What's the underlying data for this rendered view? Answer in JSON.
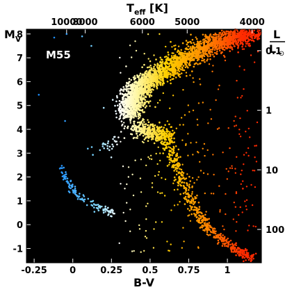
{
  "chart_data": {
    "type": "scatter",
    "annotation": "M55",
    "xlabel": "B-V",
    "ylabel_main": "M",
    "ylabel_sub": "V",
    "top_label_main": "T",
    "top_label_sub": "eff",
    "top_label_units": " [K]",
    "right_label_num": "L",
    "right_label_den": "L",
    "right_label_den_symbol": "⊙",
    "xlim": [
      -0.3,
      1.22
    ],
    "ylim": [
      8.2,
      -1.6
    ],
    "x_ticks": [
      {
        "value": -0.25,
        "label": "-0.25"
      },
      {
        "value": 0,
        "label": "0"
      },
      {
        "value": 0.25,
        "label": "0.25"
      },
      {
        "value": 0.5,
        "label": "0.5"
      },
      {
        "value": 0.75,
        "label": "0.75"
      },
      {
        "value": 1,
        "label": "1"
      }
    ],
    "y_ticks": [
      {
        "value": -1,
        "label": "-1"
      },
      {
        "value": 0,
        "label": "0"
      },
      {
        "value": 1,
        "label": "1"
      },
      {
        "value": 2,
        "label": "2"
      },
      {
        "value": 3,
        "label": "3"
      },
      {
        "value": 4,
        "label": "4"
      },
      {
        "value": 5,
        "label": "5"
      },
      {
        "value": 6,
        "label": "6"
      },
      {
        "value": 7,
        "label": "7"
      },
      {
        "value": 8,
        "label": "8"
      }
    ],
    "top_ticks": [
      {
        "bv": -0.04,
        "label": "10000"
      },
      {
        "bv": 0.08,
        "label": "8000"
      },
      {
        "bv": 0.45,
        "label": "6000"
      },
      {
        "bv": 0.74,
        "label": "5000"
      },
      {
        "bv": 1.16,
        "label": "4000"
      }
    ],
    "right_ticks": [
      {
        "mv": -0.2,
        "label": "100"
      },
      {
        "mv": 2.3,
        "label": "10"
      },
      {
        "mv": 4.8,
        "label": "1"
      },
      {
        "mv": 7.3,
        "label": "0.1"
      }
    ],
    "colors": {
      "background": "#000000",
      "hot": "#1e90ff",
      "mid": "#fff7a0",
      "cool": "#ff2a00"
    },
    "sequences": {
      "horizontal_branch": [
        [
          -0.08,
          2.4
        ],
        [
          -0.05,
          2.0
        ],
        [
          -0.02,
          1.7
        ],
        [
          0.0,
          1.5
        ],
        [
          0.03,
          1.25
        ],
        [
          0.07,
          1.0
        ],
        [
          0.12,
          0.85
        ],
        [
          0.17,
          0.72
        ],
        [
          0.22,
          0.6
        ],
        [
          0.26,
          0.5
        ]
      ],
      "blue_stragglers": [
        [
          0.1,
          2.9
        ],
        [
          0.15,
          3.2
        ],
        [
          0.2,
          3.35
        ],
        [
          0.24,
          3.25
        ],
        [
          0.27,
          3.55
        ],
        [
          0.3,
          3.7
        ],
        [
          0.33,
          4.0
        ],
        [
          0.36,
          4.3
        ]
      ],
      "main_sequence": [
        [
          0.36,
          4.55
        ],
        [
          0.38,
          5.0
        ],
        [
          0.4,
          5.4
        ],
        [
          0.43,
          5.7
        ],
        [
          0.48,
          6.0
        ],
        [
          0.55,
          6.3
        ],
        [
          0.62,
          6.6
        ],
        [
          0.7,
          6.9
        ],
        [
          0.8,
          7.2
        ],
        [
          0.9,
          7.5
        ],
        [
          1.0,
          7.7
        ],
        [
          1.08,
          7.9
        ],
        [
          1.12,
          8.05
        ]
      ],
      "subgiant_branch": [
        [
          0.4,
          4.1
        ],
        [
          0.45,
          3.95
        ],
        [
          0.52,
          3.9
        ],
        [
          0.58,
          3.8
        ],
        [
          0.61,
          3.6
        ]
      ],
      "red_giant_branch": [
        [
          0.61,
          3.5
        ],
        [
          0.65,
          2.9
        ],
        [
          0.69,
          2.2
        ],
        [
          0.73,
          1.5
        ],
        [
          0.77,
          0.9
        ],
        [
          0.82,
          0.3
        ],
        [
          0.88,
          -0.2
        ],
        [
          0.95,
          -0.6
        ],
        [
          1.03,
          -0.9
        ],
        [
          1.1,
          -1.2
        ],
        [
          1.15,
          -1.4
        ]
      ]
    },
    "clusters": [
      {
        "name": "main_sequence_band",
        "seq": "main_sequence",
        "n": 2600,
        "spread_x": 0.035,
        "spread_y": 0.12
      },
      {
        "name": "turnoff_bulge",
        "seq": "subgiant_branch",
        "n": 350,
        "spread_x": 0.03,
        "spread_y": 0.18
      },
      {
        "name": "giant_branch",
        "seq": "red_giant_branch",
        "n": 520,
        "spread_x": 0.022,
        "spread_y": 0.08
      },
      {
        "name": "horizontal_branch",
        "seq": "horizontal_branch",
        "n": 130,
        "spread_x": 0.012,
        "spread_y": 0.08
      },
      {
        "name": "blue_stragglers",
        "seq": "blue_stragglers",
        "n": 35,
        "spread_x": 0.018,
        "spread_y": 0.12
      }
    ],
    "field_stars": 320
  }
}
